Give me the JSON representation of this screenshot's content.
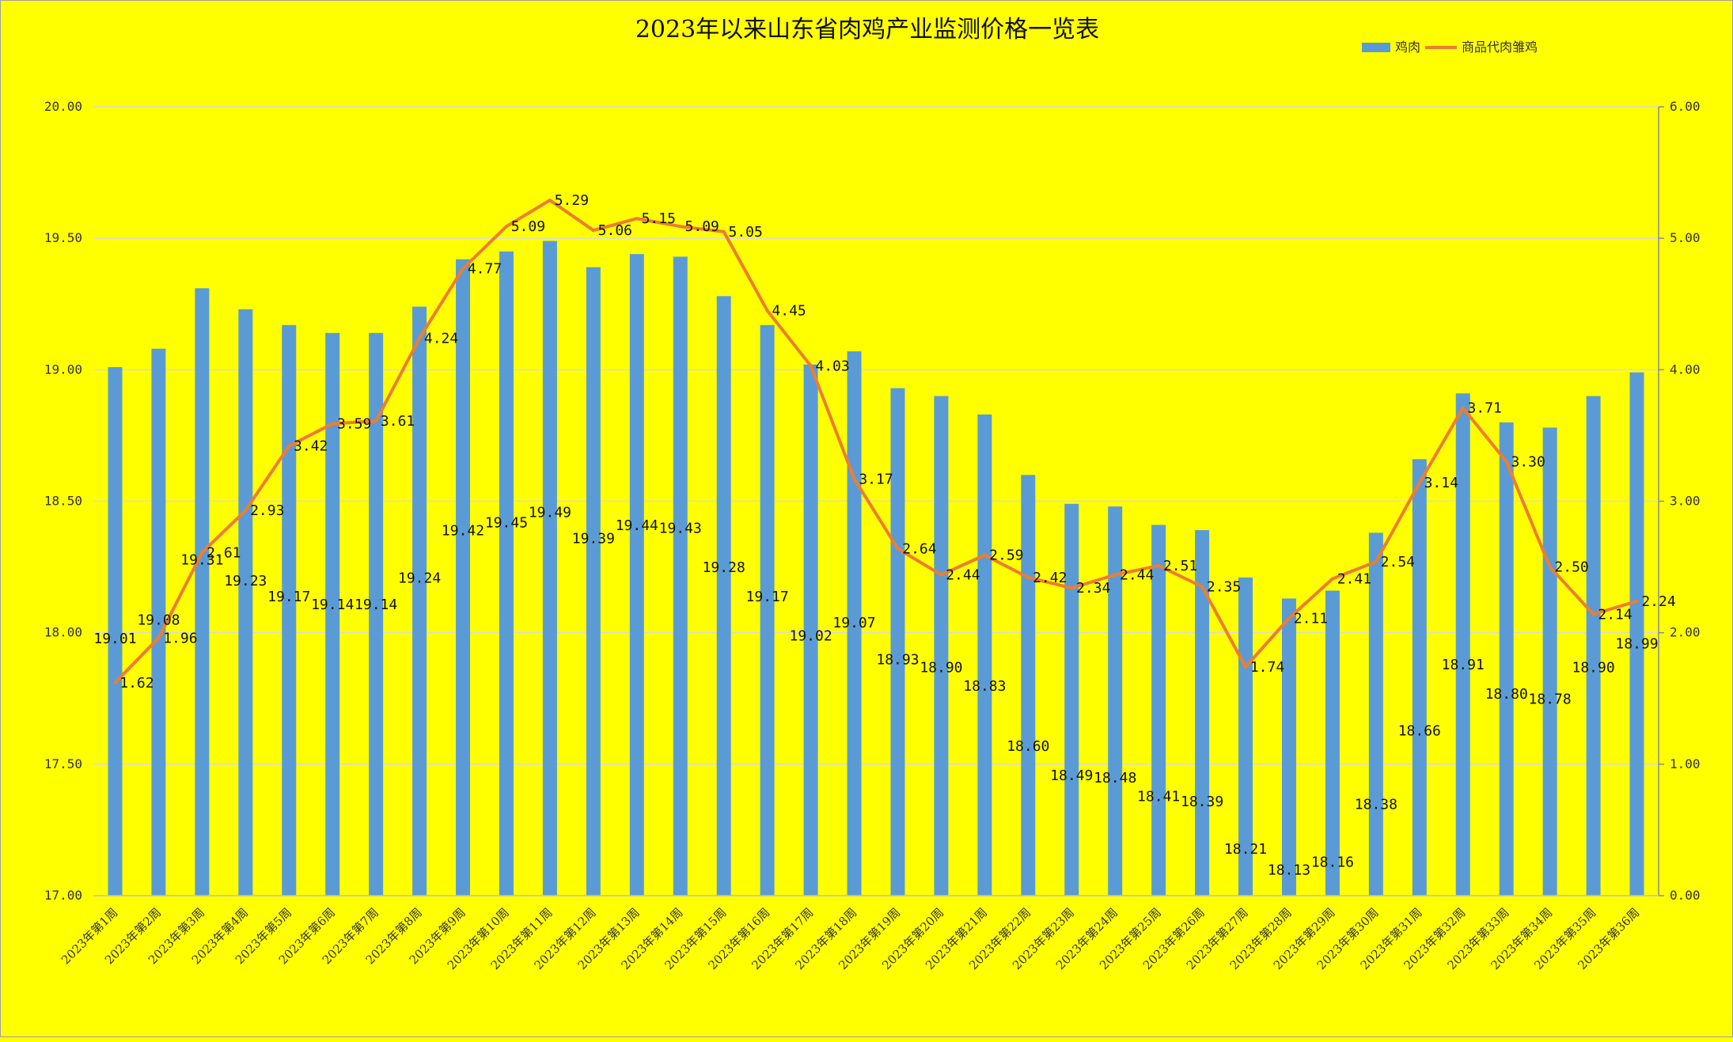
{
  "chart_data": {
    "type": "bar+line",
    "title": "2023年以来山东省肉鸡产业监测价格一览表",
    "categories": [
      "2023年第1周",
      "2023年第2周",
      "2023年第3周",
      "2023年第4周",
      "2023年第5周",
      "2023年第6周",
      "2023年第7周",
      "2023年第8周",
      "2023年第9周",
      "2023年第10周",
      "2023年第11周",
      "2023年第12周",
      "2023年第13周",
      "2023年第14周",
      "2023年第15周",
      "2023年第16周",
      "2023年第17周",
      "2023年第18周",
      "2023年第19周",
      "2023年第20周",
      "2023年第21周",
      "2023年第22周",
      "2023年第23周",
      "2023年第24周",
      "2023年第25周",
      "2023年第26周",
      "2023年第27周",
      "2023年第28周",
      "2023年第29周",
      "2023年第30周",
      "2023年第31周",
      "2023年第32周",
      "2023年第33周",
      "2023年第34周",
      "2023年第35周",
      "2023年第36周"
    ],
    "series": [
      {
        "name": "鸡肉",
        "type": "bar",
        "axis": "left",
        "color": "#5b9bd5",
        "values": [
          19.01,
          19.08,
          19.31,
          19.23,
          19.17,
          19.14,
          19.14,
          19.24,
          19.42,
          19.45,
          19.49,
          19.39,
          19.44,
          19.43,
          19.28,
          19.17,
          19.02,
          19.07,
          18.93,
          18.9,
          18.83,
          18.6,
          18.49,
          18.48,
          18.41,
          18.39,
          18.21,
          18.13,
          18.16,
          18.38,
          18.66,
          18.91,
          18.8,
          18.78,
          18.9,
          18.99
        ]
      },
      {
        "name": "商品代肉雏鸡",
        "type": "line",
        "axis": "right",
        "color": "#ed7d31",
        "values": [
          1.62,
          1.96,
          2.61,
          2.93,
          3.42,
          3.59,
          3.61,
          4.24,
          4.77,
          5.09,
          5.29,
          5.06,
          5.15,
          5.09,
          5.05,
          4.45,
          4.03,
          3.17,
          2.64,
          2.44,
          2.59,
          2.42,
          2.34,
          2.44,
          2.51,
          2.35,
          1.74,
          2.11,
          2.41,
          2.54,
          3.14,
          3.71,
          3.3,
          2.5,
          2.14,
          2.24
        ]
      }
    ],
    "y_left": {
      "min": 17,
      "max": 20,
      "ticks": [
        "17.00",
        "17.50",
        "18.00",
        "18.50",
        "19.00",
        "19.50",
        "20.00"
      ]
    },
    "y_right": {
      "min": 0,
      "max": 6,
      "ticks": [
        "0.00",
        "1.00",
        "2.00",
        "3.00",
        "4.00",
        "5.00",
        "6.00"
      ]
    },
    "grid": "horizontal",
    "legend_position": "top-right"
  }
}
